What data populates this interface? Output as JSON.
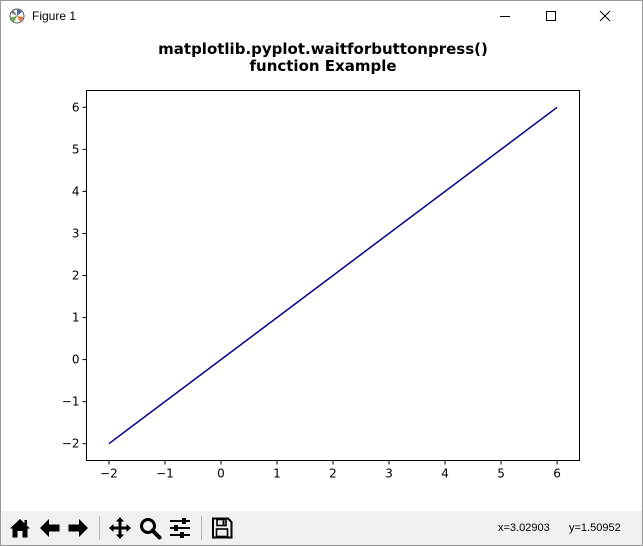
{
  "window": {
    "title": "Figure 1",
    "controls": {
      "minimize": "minimize",
      "maximize": "maximize",
      "close": "close"
    }
  },
  "figure": {
    "title_line1": "matplotlib.pyplot.waitforbuttonpress()",
    "title_line2": "function Example"
  },
  "chart_data": {
    "type": "line",
    "title": "matplotlib.pyplot.waitforbuttonpress()\nfunction Example",
    "xlabel": "",
    "ylabel": "",
    "x": [
      -2,
      6
    ],
    "series": [
      {
        "values": [
          -2,
          6
        ],
        "color": "#00008b"
      }
    ],
    "xlim": [
      -2.4,
      6.4
    ],
    "ylim": [
      -2.4,
      6.4
    ],
    "xticks": [
      -2,
      -1,
      0,
      1,
      2,
      3,
      4,
      5,
      6
    ],
    "xtick_labels": [
      "−2",
      "−1",
      "0",
      "1",
      "2",
      "3",
      "4",
      "5",
      "6"
    ],
    "yticks": [
      -2,
      -1,
      0,
      1,
      2,
      3,
      4,
      5,
      6
    ],
    "ytick_labels": [
      "−2",
      "−1",
      "0",
      "1",
      "2",
      "3",
      "4",
      "5",
      "6"
    ],
    "grid": false,
    "legend": "none"
  },
  "toolbar": {
    "buttons": [
      {
        "name": "home-button",
        "icon": "home-icon"
      },
      {
        "name": "back-button",
        "icon": "arrow-left-icon"
      },
      {
        "name": "forward-button",
        "icon": "arrow-right-icon"
      },
      {
        "name": "pan-button",
        "icon": "move-icon"
      },
      {
        "name": "zoom-button",
        "icon": "magnifier-icon"
      },
      {
        "name": "configure-subplots-button",
        "icon": "sliders-icon"
      },
      {
        "name": "save-button",
        "icon": "floppy-disk-icon"
      }
    ],
    "coord_x": "x=3.02903",
    "coord_y": "y=1.50952"
  }
}
